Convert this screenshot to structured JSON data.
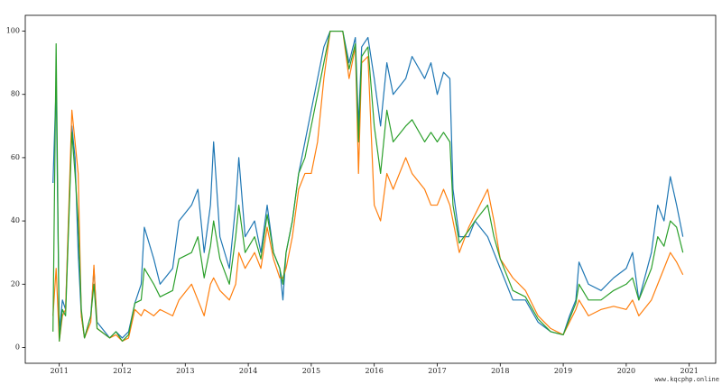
{
  "chart_data": {
    "type": "line",
    "x": [
      2010.9,
      2010.95,
      2011.0,
      2011.05,
      2011.1,
      2011.2,
      2011.25,
      2011.3,
      2011.35,
      2011.4,
      2011.5,
      2011.55,
      2011.6,
      2011.8,
      2011.9,
      2012.0,
      2012.1,
      2012.2,
      2012.3,
      2012.35,
      2012.5,
      2012.6,
      2012.8,
      2012.9,
      2013.1,
      2013.2,
      2013.3,
      2013.4,
      2013.45,
      2013.55,
      2013.7,
      2013.8,
      2013.85,
      2013.95,
      2014.1,
      2014.2,
      2014.3,
      2014.4,
      2014.5,
      2014.55,
      2014.6,
      2014.7,
      2014.8,
      2014.9,
      2015.0,
      2015.1,
      2015.2,
      2015.3,
      2015.5,
      2015.6,
      2015.7,
      2015.75,
      2015.8,
      2015.9,
      2016.0,
      2016.1,
      2016.2,
      2016.3,
      2016.5,
      2016.6,
      2016.8,
      2016.9,
      2017.0,
      2017.1,
      2017.2,
      2017.25,
      2017.35,
      2017.5,
      2017.6,
      2017.8,
      2017.9,
      2018.0,
      2018.2,
      2018.4,
      2018.6,
      2018.8,
      2019.0,
      2019.1,
      2019.2,
      2019.25,
      2019.4,
      2019.6,
      2019.8,
      2020.0,
      2020.1,
      2020.2,
      2020.4,
      2020.5,
      2020.6,
      2020.7,
      2020.8,
      2020.9
    ],
    "series": [
      {
        "color": "#1f77b4",
        "values": [
          52,
          83,
          5,
          15,
          12,
          70,
          60,
          30,
          10,
          3,
          10,
          25,
          8,
          3,
          5,
          3,
          5,
          14,
          20,
          38,
          28,
          20,
          25,
          40,
          45,
          50,
          30,
          45,
          65,
          35,
          25,
          45,
          60,
          35,
          40,
          30,
          45,
          30,
          25,
          15,
          30,
          40,
          55,
          65,
          75,
          85,
          95,
          100,
          100,
          90,
          98,
          70,
          95,
          98,
          85,
          70,
          90,
          80,
          85,
          92,
          85,
          90,
          80,
          87,
          85,
          50,
          35,
          35,
          40,
          35,
          30,
          25,
          15,
          15,
          8,
          5,
          4,
          10,
          15,
          27,
          20,
          18,
          22,
          25,
          30,
          15,
          30,
          45,
          40,
          54,
          45,
          35
        ]
      },
      {
        "color": "#ff7f0e",
        "values": [
          10,
          25,
          2,
          10,
          12,
          75,
          65,
          55,
          10,
          3,
          8,
          26,
          6,
          3,
          4,
          2,
          3,
          12,
          10,
          12,
          10,
          12,
          10,
          15,
          20,
          15,
          10,
          20,
          22,
          18,
          15,
          20,
          30,
          25,
          30,
          25,
          38,
          28,
          22,
          22,
          25,
          35,
          50,
          55,
          55,
          65,
          85,
          100,
          100,
          85,
          95,
          55,
          90,
          92,
          45,
          40,
          55,
          50,
          60,
          55,
          50,
          45,
          45,
          50,
          45,
          40,
          30,
          38,
          42,
          50,
          40,
          28,
          22,
          18,
          10,
          6,
          4,
          8,
          12,
          15,
          10,
          12,
          13,
          12,
          15,
          10,
          15,
          20,
          25,
          30,
          27,
          23
        ]
      },
      {
        "color": "#2ca02c",
        "values": [
          5,
          96,
          2,
          12,
          10,
          68,
          55,
          40,
          12,
          3,
          10,
          20,
          6,
          3,
          5,
          2,
          4,
          14,
          15,
          25,
          20,
          16,
          18,
          28,
          30,
          35,
          22,
          32,
          40,
          28,
          20,
          35,
          45,
          30,
          35,
          28,
          42,
          30,
          25,
          20,
          30,
          40,
          55,
          60,
          70,
          80,
          90,
          100,
          100,
          88,
          96,
          65,
          92,
          95,
          70,
          55,
          75,
          65,
          70,
          72,
          65,
          68,
          65,
          68,
          65,
          45,
          33,
          37,
          40,
          45,
          35,
          28,
          18,
          16,
          9,
          5,
          4,
          9,
          14,
          20,
          15,
          15,
          18,
          20,
          22,
          15,
          25,
          35,
          32,
          40,
          38,
          30
        ]
      }
    ],
    "xlim": [
      2010.46,
      2021.42
    ],
    "ylim": [
      -5,
      105
    ],
    "xticks": [
      2011,
      2012,
      2013,
      2014,
      2015,
      2016,
      2017,
      2018,
      2019,
      2020,
      2021
    ],
    "yticks": [
      0,
      20,
      40,
      60,
      80,
      100
    ],
    "grid": false,
    "watermark": "www.kqcphp.online"
  }
}
